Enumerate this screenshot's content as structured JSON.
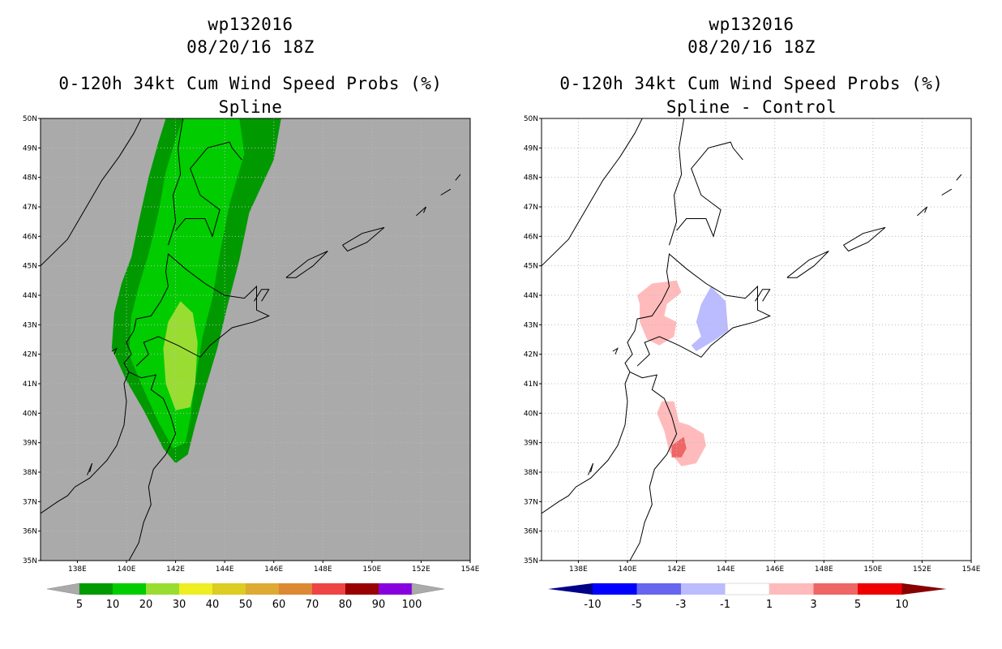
{
  "chart_data": [
    {
      "type": "filled-contour-map",
      "title_lines": [
        "wp132016",
        "08/20/16 18Z",
        "0-120h 34kt Cum Wind Speed Probs (%)",
        "Spline"
      ],
      "x_ticks": [
        "138E",
        "140E",
        "142E",
        "144E",
        "146E",
        "148E",
        "150E",
        "152E",
        "154E"
      ],
      "y_ticks": [
        "35N",
        "36N",
        "37N",
        "38N",
        "39N",
        "40N",
        "41N",
        "42N",
        "43N",
        "44N",
        "45N",
        "46N",
        "47N",
        "48N",
        "49N",
        "50N"
      ],
      "xlim": [
        136.5,
        154
      ],
      "ylim": [
        35,
        50
      ],
      "background_color": "#aaaaaa",
      "colorbar": {
        "labels": [
          "5",
          "10",
          "20",
          "30",
          "40",
          "50",
          "60",
          "70",
          "80",
          "90",
          "100"
        ],
        "colors": [
          "#009a00",
          "#00cc00",
          "#99dd33",
          "#eeee22",
          "#ddcc22",
          "#ddaa33",
          "#dd8833",
          "#ee4444",
          "#990000",
          "#8800dd"
        ],
        "end_color": "#aaaaaa"
      },
      "contours": [
        {
          "level": "5-10",
          "color": "#009a00",
          "points": [
            [
              141.6,
              50
            ],
            [
              146.3,
              50
            ],
            [
              146.0,
              48.6
            ],
            [
              145.0,
              46.8
            ],
            [
              144.6,
              45.2
            ],
            [
              144.1,
              43.6
            ],
            [
              143.7,
              42.2
            ],
            [
              143.2,
              40.8
            ],
            [
              142.8,
              39.6
            ],
            [
              142.5,
              38.6
            ],
            [
              142.0,
              38.3
            ],
            [
              141.5,
              38.8
            ],
            [
              140.7,
              40.1
            ],
            [
              140.0,
              41.1
            ],
            [
              139.4,
              42.2
            ],
            [
              139.5,
              43.4
            ],
            [
              139.8,
              44.4
            ],
            [
              140.2,
              45.3
            ],
            [
              140.5,
              46.5
            ],
            [
              140.9,
              48.0
            ],
            [
              141.3,
              49.2
            ]
          ]
        },
        {
          "level": "10-20",
          "color": "#00cc00",
          "points": [
            [
              142.3,
              50
            ],
            [
              144.6,
              50
            ],
            [
              144.8,
              48.8
            ],
            [
              144.2,
              47.1
            ],
            [
              143.8,
              45.4
            ],
            [
              143.5,
              43.9
            ],
            [
              143.1,
              42.6
            ],
            [
              142.8,
              41.1
            ],
            [
              142.6,
              39.8
            ],
            [
              142.4,
              39.0
            ],
            [
              141.9,
              38.8
            ],
            [
              141.3,
              39.7
            ],
            [
              140.7,
              40.8
            ],
            [
              140.1,
              42.0
            ],
            [
              140.2,
              43.3
            ],
            [
              140.5,
              44.3
            ],
            [
              140.9,
              45.4
            ],
            [
              141.3,
              46.8
            ],
            [
              141.6,
              48.2
            ],
            [
              142.0,
              49.3
            ]
          ]
        },
        {
          "level": "20-30",
          "color": "#99dd33",
          "points": [
            [
              142.2,
              43.8
            ],
            [
              142.7,
              43.4
            ],
            [
              142.9,
              42.4
            ],
            [
              142.8,
              41.0
            ],
            [
              142.6,
              40.2
            ],
            [
              142.0,
              40.1
            ],
            [
              141.6,
              41.0
            ],
            [
              141.5,
              42.2
            ],
            [
              141.7,
              43.1
            ]
          ]
        }
      ]
    },
    {
      "type": "filled-contour-map",
      "title_lines": [
        "wp132016",
        "08/20/16 18Z",
        "0-120h 34kt Cum Wind Speed Probs (%)",
        "Spline - Control"
      ],
      "x_ticks": [
        "138E",
        "140E",
        "142E",
        "144E",
        "146E",
        "148E",
        "150E",
        "152E",
        "154E"
      ],
      "y_ticks": [
        "35N",
        "36N",
        "37N",
        "38N",
        "39N",
        "40N",
        "41N",
        "42N",
        "43N",
        "44N",
        "45N",
        "46N",
        "47N",
        "48N",
        "49N",
        "50N"
      ],
      "xlim": [
        136.5,
        154
      ],
      "ylim": [
        35,
        50
      ],
      "background_color": "#ffffff",
      "colorbar": {
        "labels": [
          "-10",
          "-5",
          "-3",
          "-1",
          "1",
          "3",
          "5",
          "10"
        ],
        "colors": [
          "#0000ff",
          "#6666ee",
          "#bbbbff",
          "#ffffff",
          "#ffbbbb",
          "#ee6666",
          "#ee0000"
        ],
        "end_colors": [
          "#000088",
          "#880000"
        ]
      },
      "contours": [
        {
          "level": "1 to 3",
          "color": "#ffbbbb",
          "points": [
            [
              140.4,
              44.0
            ],
            [
              141.0,
              44.4
            ],
            [
              142.0,
              44.5
            ],
            [
              142.2,
              44.1
            ],
            [
              141.6,
              43.7
            ],
            [
              141.5,
              43.3
            ],
            [
              142.0,
              43.1
            ],
            [
              141.9,
              42.6
            ],
            [
              141.3,
              42.3
            ],
            [
              140.8,
              42.5
            ],
            [
              140.5,
              43.1
            ],
            [
              140.5,
              43.7
            ]
          ]
        },
        {
          "level": "-1 to -3",
          "color": "#bbbbff",
          "points": [
            [
              143.4,
              44.3
            ],
            [
              144.0,
              43.8
            ],
            [
              144.1,
              42.8
            ],
            [
              143.6,
              42.5
            ],
            [
              143.2,
              42.3
            ],
            [
              142.8,
              42.1
            ],
            [
              142.6,
              42.3
            ],
            [
              143.0,
              42.6
            ],
            [
              142.8,
              43.1
            ],
            [
              143.0,
              43.7
            ]
          ]
        },
        {
          "level": "1 to 3",
          "color": "#ffbbbb",
          "points": [
            [
              141.4,
              40.4
            ],
            [
              141.9,
              40.4
            ],
            [
              142.1,
              39.7
            ],
            [
              142.5,
              39.6
            ],
            [
              143.1,
              39.3
            ],
            [
              143.2,
              38.9
            ],
            [
              142.8,
              38.3
            ],
            [
              142.2,
              38.2
            ],
            [
              141.7,
              38.7
            ],
            [
              141.5,
              39.4
            ],
            [
              141.2,
              40.0
            ]
          ]
        },
        {
          "level": "3 to 5",
          "color": "#ee6666",
          "points": [
            [
              141.8,
              38.9
            ],
            [
              142.3,
              39.2
            ],
            [
              142.4,
              38.8
            ],
            [
              142.2,
              38.5
            ],
            [
              141.8,
              38.5
            ]
          ]
        }
      ]
    }
  ]
}
